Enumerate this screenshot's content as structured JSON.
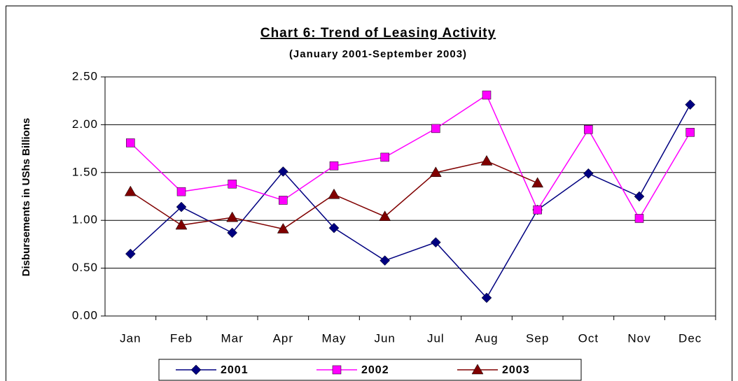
{
  "chart_data": {
    "type": "line",
    "title": "Chart 6: Trend of Leasing Activity",
    "subtitle": "(January 2001-September 2003)",
    "y_label": "Disbursements in UShs Billions",
    "categories": [
      "Jan",
      "Feb",
      "Mar",
      "Apr",
      "May",
      "Jun",
      "Jul",
      "Aug",
      "Sep",
      "Oct",
      "Nov",
      "Dec"
    ],
    "series": [
      {
        "name": "2001",
        "color": "#000080",
        "marker": "diamond",
        "values": [
          0.65,
          1.14,
          0.87,
          1.51,
          0.92,
          0.58,
          0.77,
          0.19,
          1.11,
          1.49,
          1.25,
          2.21
        ]
      },
      {
        "name": "2002",
        "color": "#ff00ff",
        "marker": "square",
        "values": [
          1.81,
          1.3,
          1.38,
          1.21,
          1.57,
          1.66,
          1.96,
          2.31,
          1.11,
          1.95,
          1.02,
          1.92
        ]
      },
      {
        "name": "2003",
        "color": "#800000",
        "marker": "triangle",
        "values": [
          1.3,
          0.95,
          1.03,
          0.91,
          1.27,
          1.04,
          1.5,
          1.62,
          1.39,
          null,
          null,
          null
        ]
      }
    ],
    "ylim": [
      0,
      2.5
    ],
    "yticks": [
      {
        "value": 0,
        "label": "0.00"
      },
      {
        "value": 0.5,
        "label": "0.50"
      },
      {
        "value": 1,
        "label": "1.00"
      },
      {
        "value": 1.5,
        "label": "1.50"
      },
      {
        "value": 2,
        "label": "2.00"
      },
      {
        "value": 2.5,
        "label": "2.50"
      }
    ],
    "grid": true,
    "legend": "bottom"
  }
}
